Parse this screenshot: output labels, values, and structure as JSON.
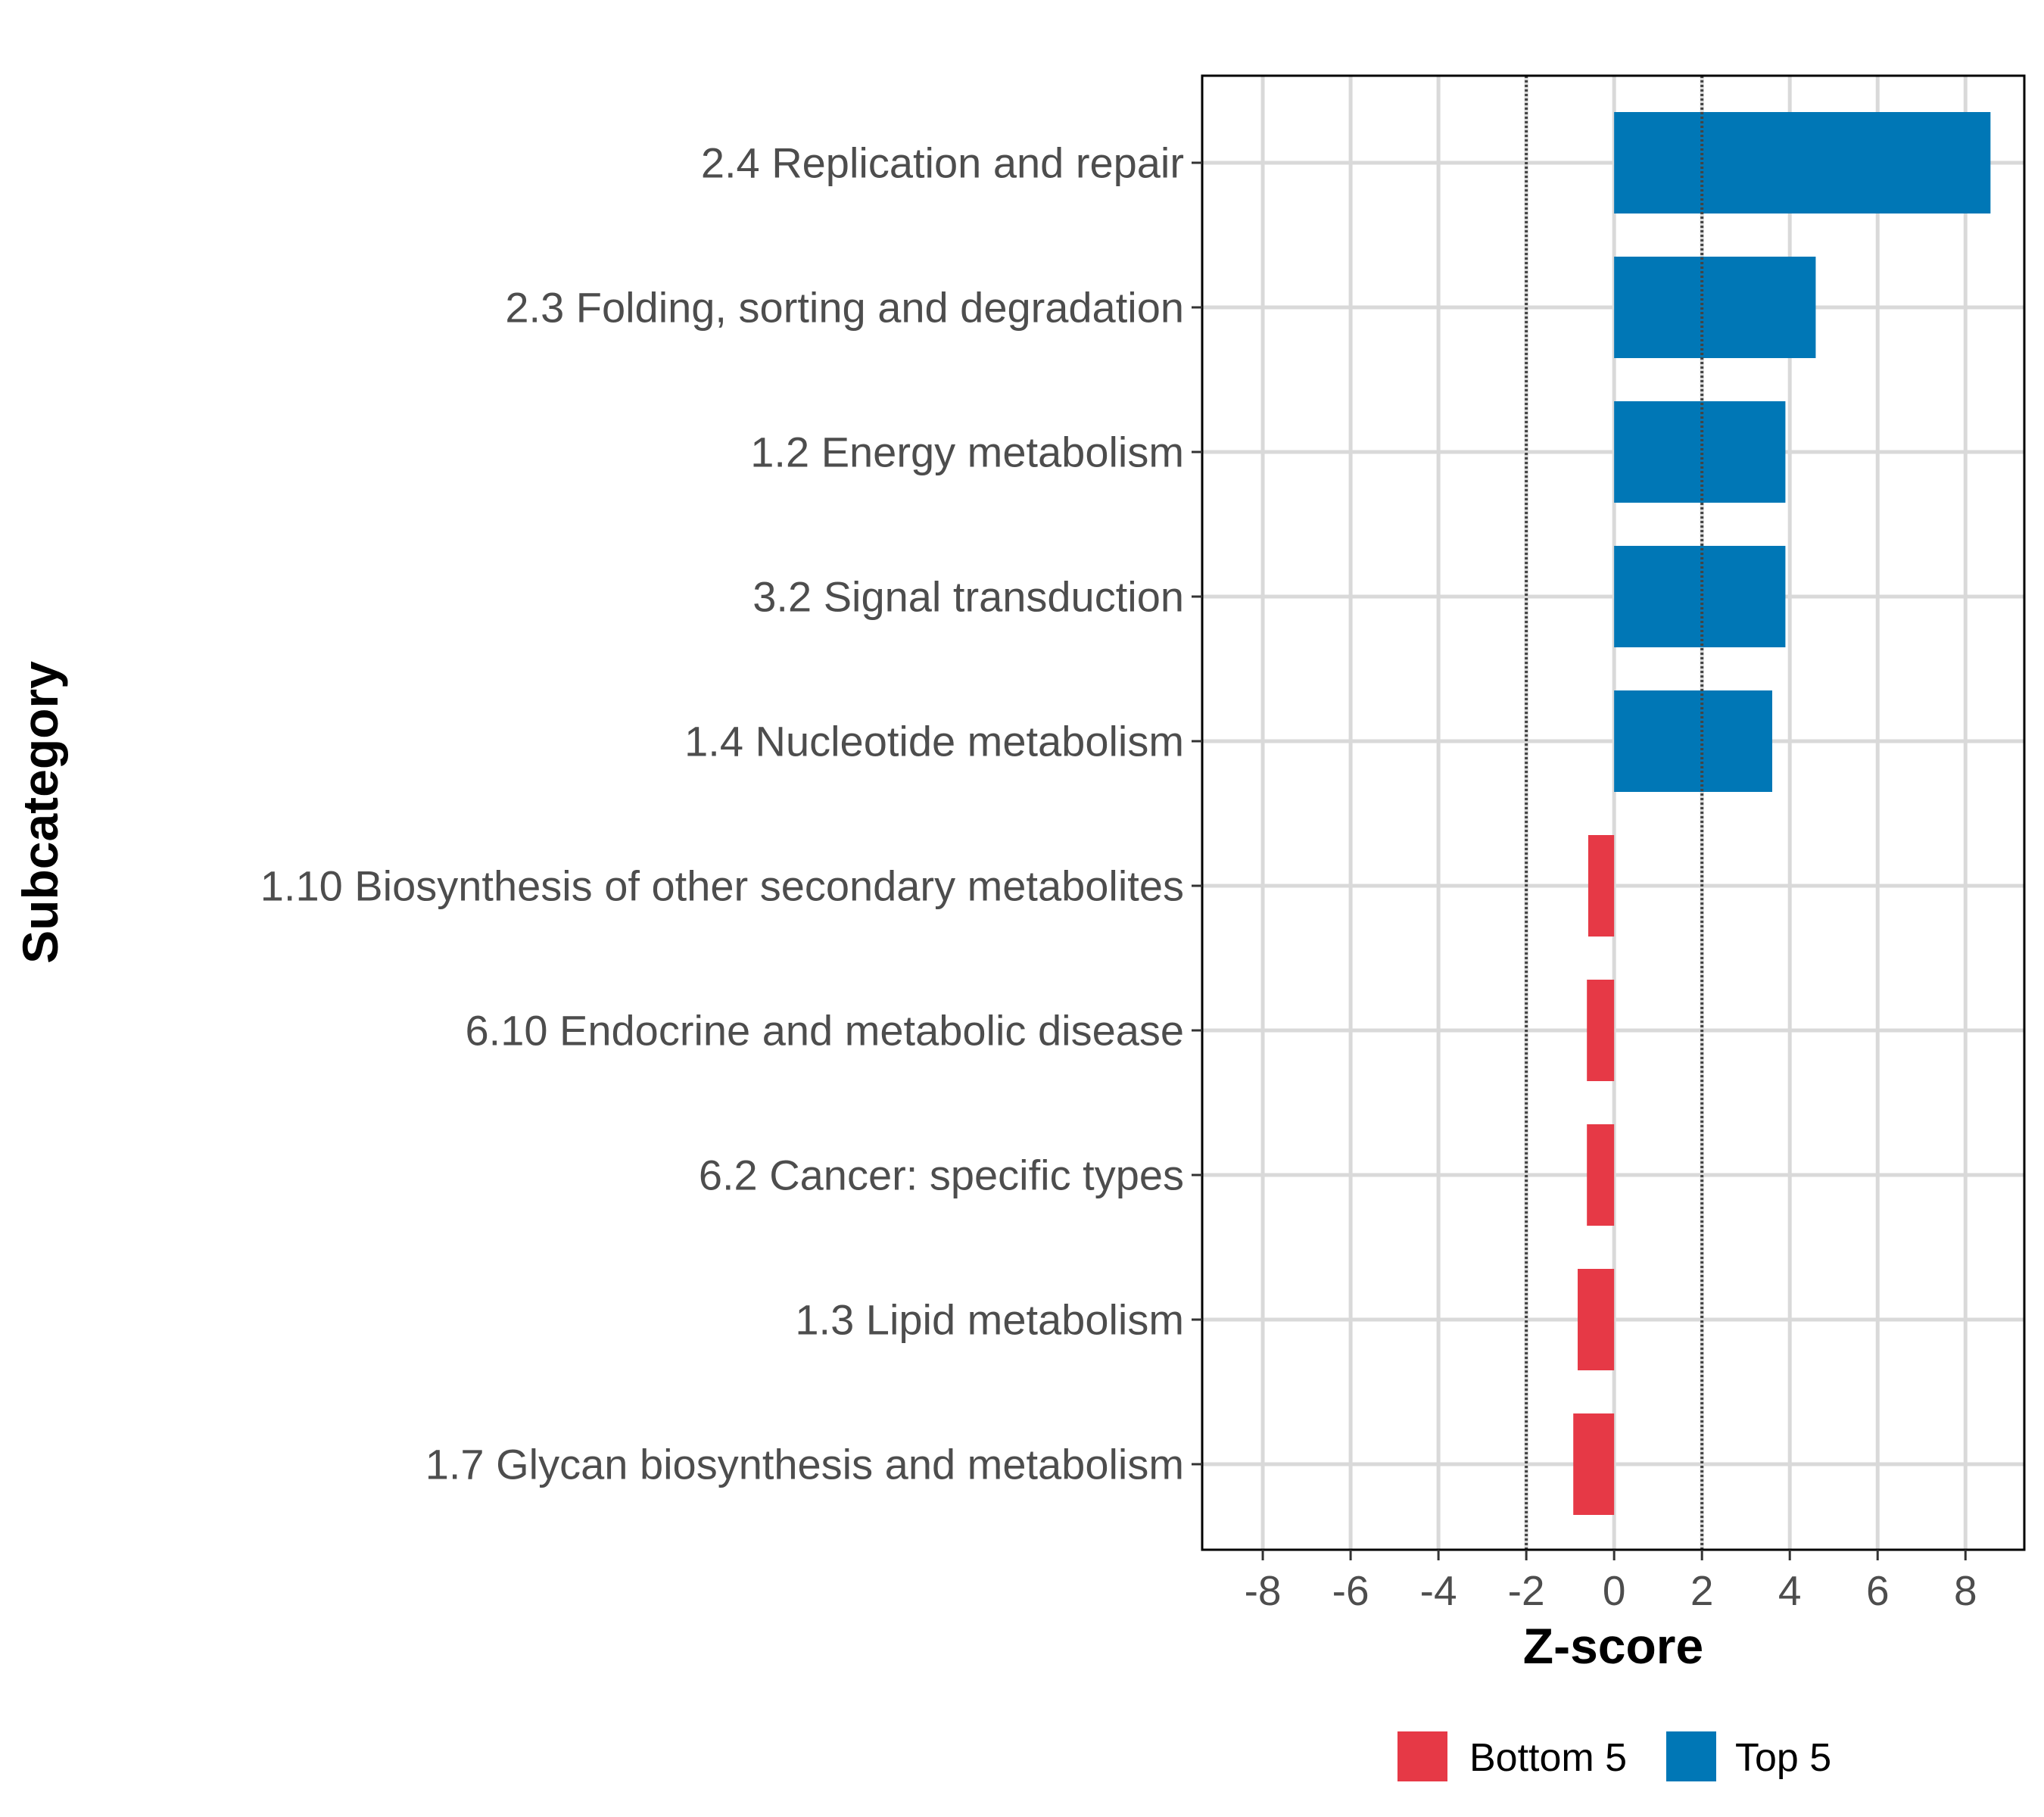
{
  "chart_data": {
    "type": "bar",
    "orientation": "horizontal",
    "title": "",
    "xlabel": "Z-score",
    "ylabel": "Subcategory",
    "xlim": [
      -9.38,
      9.34
    ],
    "xticks": [
      -8,
      -6,
      -4,
      -2,
      0,
      2,
      4,
      6,
      8
    ],
    "xtick_labels": [
      "-8",
      "-6",
      "-4",
      "-2",
      "0",
      "2",
      "4",
      "6",
      "8"
    ],
    "reference_lines": [
      -2,
      2
    ],
    "grid": true,
    "categories": [
      "2.4 Replication and repair",
      "2.3 Folding, sorting and degradation",
      "1.2 Energy metabolism",
      "3.2 Signal transduction",
      "1.4 Nucleotide metabolism",
      "1.10 Biosynthesis of other secondary metabolites",
      "6.10 Endocrine and metabolic disease",
      "6.2 Cancer: specific types",
      "1.3 Lipid metabolism",
      "1.7 Glycan biosynthesis and metabolism"
    ],
    "values": [
      8.57,
      4.59,
      3.9,
      3.9,
      3.6,
      -0.59,
      -0.62,
      -0.62,
      -0.83,
      -0.93
    ],
    "groups": [
      "Top 5",
      "Top 5",
      "Top 5",
      "Top 5",
      "Top 5",
      "Bottom 5",
      "Bottom 5",
      "Bottom 5",
      "Bottom 5",
      "Bottom 5"
    ],
    "legend": {
      "position": "bottom",
      "entries": [
        {
          "label": "Bottom 5",
          "color": "#E63946"
        },
        {
          "label": "Top 5",
          "color": "#0077B6"
        }
      ]
    }
  }
}
